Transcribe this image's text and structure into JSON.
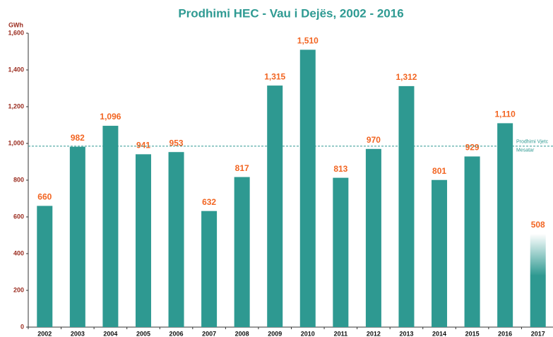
{
  "chart_data": {
    "type": "bar",
    "title": "Prodhimi HEC - Vau i Dejës, 2002 - 2016",
    "y_label": "GWh",
    "categories": [
      "2002",
      "2003",
      "2004",
      "2005",
      "2006",
      "2007",
      "2008",
      "2009",
      "2010",
      "2011",
      "2012",
      "2013",
      "2014",
      "2015",
      "2016",
      "2017"
    ],
    "values": [
      660,
      982,
      1096,
      941,
      953,
      632,
      817,
      1315,
      1510,
      813,
      970,
      1312,
      801,
      929,
      1110,
      508
    ],
    "value_labels": [
      "660",
      "982",
      "1,096",
      "941",
      "953",
      "632",
      "817",
      "1,315",
      "1,510",
      "813",
      "970",
      "1,312",
      "801",
      "929",
      "1,110",
      "508"
    ],
    "colors": [
      "#2e9991",
      "#2e9991",
      "#2e9991",
      "#2e9991",
      "#2e9991",
      "#2e9991",
      "#2e9991",
      "#2e9991",
      "#2e9991",
      "#2e9991",
      "#2e9991",
      "#2e9991",
      "#2e9991",
      "#2e9991",
      "#2e9991",
      "fade"
    ],
    "ylim": [
      0,
      1600
    ],
    "yticks": [
      0,
      200,
      400,
      600,
      800,
      {
        "value": 1000,
        "label": "1,000"
      },
      {
        "value": 1200,
        "label": "1,200"
      },
      {
        "value": 1400,
        "label": "1,400"
      },
      {
        "value": 1600,
        "label": "1,600"
      }
    ],
    "average": {
      "value": 985,
      "label": [
        "Prodhimi Vjetc",
        "Mesatar"
      ],
      "color": "#2e9991"
    },
    "grid": false
  }
}
